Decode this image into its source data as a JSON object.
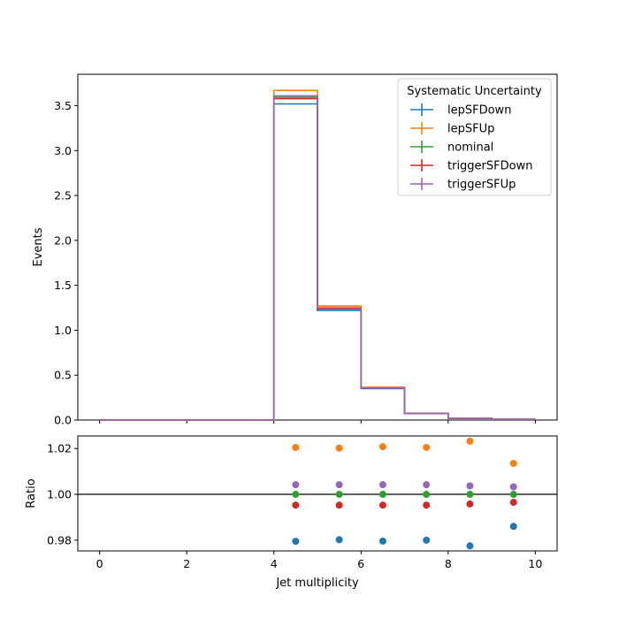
{
  "chart_data": [
    {
      "type": "line",
      "drawstyle": "step",
      "ylabel": "Events",
      "bin_edges": [
        0,
        1,
        2,
        3,
        4,
        5,
        6,
        7,
        8,
        9,
        10
      ],
      "ylim": [
        0,
        3.85
      ],
      "xlim": [
        -0.5,
        10.5
      ],
      "yticks": [
        "0.0",
        "0.5",
        "1.0",
        "1.5",
        "2.0",
        "2.5",
        "3.0",
        "3.5"
      ],
      "legend": {
        "title": "Systematic Uncertainty",
        "position": "top-right"
      },
      "series": [
        {
          "name": "lepSFDown",
          "color": "#1f77b4",
          "values": [
            0,
            0,
            0,
            0,
            3.52,
            1.22,
            0.35,
            0.072,
            0.018,
            0.008
          ]
        },
        {
          "name": "lepSFUp",
          "color": "#ff7f0e",
          "values": [
            0,
            0,
            0,
            0,
            3.67,
            1.27,
            0.365,
            0.075,
            0.0188,
            0.008
          ]
        },
        {
          "name": "nominal",
          "color": "#2ca02c",
          "values": [
            0,
            0,
            0,
            0,
            3.595,
            1.245,
            0.357,
            0.0735,
            0.0184,
            0.008
          ]
        },
        {
          "name": "triggerSFDown",
          "color": "#d62728",
          "values": [
            0,
            0,
            0,
            0,
            3.578,
            1.239,
            0.355,
            0.0732,
            0.0183,
            0.008
          ]
        },
        {
          "name": "triggerSFUp",
          "color": "#9467bd",
          "values": [
            0,
            0,
            0,
            0,
            3.61,
            1.25,
            0.358,
            0.0738,
            0.0185,
            0.008
          ]
        }
      ]
    },
    {
      "type": "scatter",
      "xlabel": "Jet multiplicity",
      "ylabel": "Ratio",
      "xlim": [
        -0.5,
        10.5
      ],
      "ylim": [
        0.9753,
        1.0255
      ],
      "reference_line": 1.0,
      "xticks": [
        "0",
        "2",
        "4",
        "6",
        "8",
        "10"
      ],
      "yticks": [
        "0.98",
        "1.00",
        "1.02"
      ],
      "x": [
        4.5,
        5.5,
        6.5,
        7.5,
        8.5,
        9.5
      ],
      "series": [
        {
          "name": "lepSFDown",
          "color": "#1f77b4",
          "values": [
            0.9795,
            0.9802,
            0.9796,
            0.98,
            0.9775,
            0.986
          ]
        },
        {
          "name": "lepSFUp",
          "color": "#ff7f0e",
          "values": [
            1.0205,
            1.0202,
            1.0208,
            1.0205,
            1.0232,
            1.0135
          ]
        },
        {
          "name": "nominal",
          "color": "#2ca02c",
          "values": [
            1.0,
            1.0,
            1.0,
            1.0,
            1.0,
            1.0
          ]
        },
        {
          "name": "triggerSFDown",
          "color": "#d62728",
          "values": [
            0.9953,
            0.9953,
            0.9953,
            0.9953,
            0.9958,
            0.9965
          ]
        },
        {
          "name": "triggerSFUp",
          "color": "#9467bd",
          "values": [
            1.0042,
            1.0042,
            1.0042,
            1.0042,
            1.0037,
            1.0033
          ]
        }
      ]
    }
  ]
}
